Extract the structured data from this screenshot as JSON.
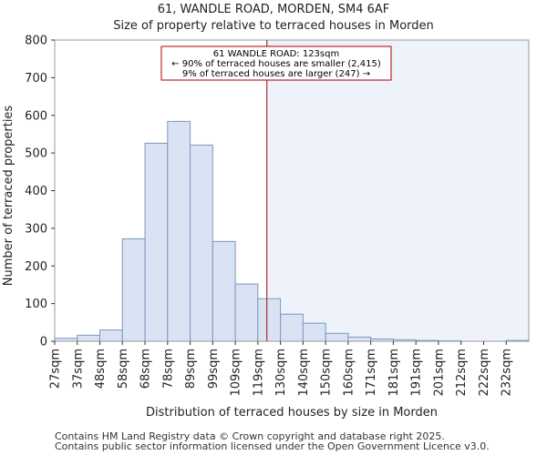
{
  "chart_data": {
    "type": "bar",
    "title": "61, WANDLE ROAD, MORDEN, SM4 6AF",
    "subtitle": "Size of property relative to terraced houses in Morden",
    "xlabel": "Distribution of terraced houses by size in Morden",
    "ylabel": "Number of terraced properties",
    "ylim": [
      0,
      800
    ],
    "yticks": [
      "0",
      "100",
      "200",
      "300",
      "400",
      "500",
      "600",
      "700",
      "800"
    ],
    "categories": [
      "27sqm",
      "37sqm",
      "48sqm",
      "58sqm",
      "68sqm",
      "78sqm",
      "89sqm",
      "99sqm",
      "109sqm",
      "119sqm",
      "130sqm",
      "140sqm",
      "150sqm",
      "160sqm",
      "171sqm",
      "181sqm",
      "191sqm",
      "201sqm",
      "212sqm",
      "222sqm",
      "232sqm"
    ],
    "values": [
      8,
      16,
      30,
      272,
      526,
      584,
      521,
      265,
      152,
      113,
      72,
      48,
      21,
      11,
      6,
      4,
      2,
      1,
      0,
      0,
      2
    ],
    "property_line_bin_position": 9.4,
    "annotation": {
      "line1": "61 WANDLE ROAD: 123sqm",
      "line2": "← 90% of terraced houses are smaller (2,415)",
      "line3": "9% of terraced houses are larger (247) →"
    },
    "colors": {
      "bar_fill": "#dae3f3",
      "bar_edge": "#7b96c2",
      "highlight_region": "#eef2fb",
      "property_line": "#aa0000"
    }
  },
  "footer": {
    "line1": "Contains HM Land Registry data © Crown copyright and database right 2025.",
    "line2": "Contains public sector information licensed under the Open Government Licence v3.0."
  }
}
